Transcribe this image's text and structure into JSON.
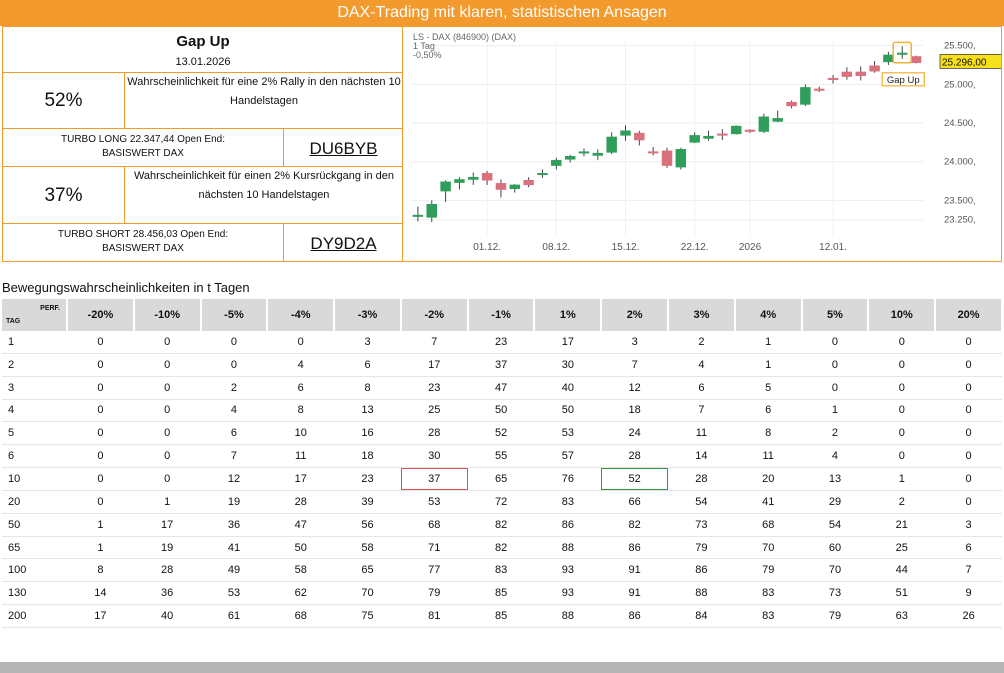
{
  "header": {
    "title": "DAX-Trading mit klaren, statistischen Ansagen"
  },
  "signal": {
    "title": "Gap Up",
    "date": "13.01.2026",
    "long": {
      "percent": "52%",
      "description": "Wahrscheinlichkeit für eine 2% Rally in den nächsten 10 Handelstagen",
      "turbo_line1": "TURBO LONG 22.347,44 Open End:",
      "turbo_line2": "BASISWERT DAX",
      "code": "DU6BYB"
    },
    "short": {
      "percent": "37%",
      "description": "Wahrscheinlichkeit für einen 2% Kursrückgang in den nächsten 10 Handelstagen",
      "turbo_line1": "TURBO SHORT 28.456,03 Open End:",
      "turbo_line2": "BASISWERT DAX",
      "code": "DY9D2A"
    }
  },
  "chart_data": {
    "type": "candlestick",
    "header_lines": [
      "LS - DAX (846900) (DAX)",
      "1 Tag",
      "-0,50%"
    ],
    "y_ticks": [
      "23.250,",
      "23.500,",
      "24.000,",
      "24.500,",
      "25.000,",
      "25.500,"
    ],
    "y_tick_values": [
      23250,
      23500,
      24000,
      24500,
      25000,
      25500
    ],
    "ylim": [
      23130,
      25560
    ],
    "x_ticks": [
      {
        "label": "01.12.",
        "index": 5
      },
      {
        "label": "08.12.",
        "index": 10
      },
      {
        "label": "15.12.",
        "index": 15
      },
      {
        "label": "22.12.",
        "index": 20
      },
      {
        "label": "2026",
        "index": 24
      },
      {
        "label": "12.01.",
        "index": 30
      }
    ],
    "price_tag": "25.296,00",
    "annotation": "Gap Up",
    "up_color": "#2f9e5b",
    "down_color": "#d9707c",
    "candles": [
      {
        "o": 23300,
        "h": 23420,
        "l": 23230,
        "c": 23310
      },
      {
        "o": 23280,
        "h": 23500,
        "l": 23220,
        "c": 23450
      },
      {
        "o": 23620,
        "h": 23760,
        "l": 23480,
        "c": 23740
      },
      {
        "o": 23730,
        "h": 23800,
        "l": 23640,
        "c": 23770
      },
      {
        "o": 23770,
        "h": 23860,
        "l": 23700,
        "c": 23800
      },
      {
        "o": 23850,
        "h": 23880,
        "l": 23700,
        "c": 23760
      },
      {
        "o": 23720,
        "h": 23770,
        "l": 23540,
        "c": 23640
      },
      {
        "o": 23650,
        "h": 23710,
        "l": 23600,
        "c": 23700
      },
      {
        "o": 23760,
        "h": 23800,
        "l": 23670,
        "c": 23700
      },
      {
        "o": 23850,
        "h": 23900,
        "l": 23790,
        "c": 23850
      },
      {
        "o": 23950,
        "h": 24050,
        "l": 23900,
        "c": 24020
      },
      {
        "o": 24030,
        "h": 24090,
        "l": 23990,
        "c": 24070
      },
      {
        "o": 24110,
        "h": 24170,
        "l": 24070,
        "c": 24130
      },
      {
        "o": 24080,
        "h": 24160,
        "l": 24020,
        "c": 24110
      },
      {
        "o": 24120,
        "h": 24380,
        "l": 24100,
        "c": 24320
      },
      {
        "o": 24340,
        "h": 24470,
        "l": 24270,
        "c": 24400
      },
      {
        "o": 24370,
        "h": 24400,
        "l": 24210,
        "c": 24280
      },
      {
        "o": 24130,
        "h": 24190,
        "l": 24080,
        "c": 24120
      },
      {
        "o": 24140,
        "h": 24180,
        "l": 23920,
        "c": 23950
      },
      {
        "o": 23930,
        "h": 24180,
        "l": 23900,
        "c": 24160
      },
      {
        "o": 24250,
        "h": 24380,
        "l": 24240,
        "c": 24340
      },
      {
        "o": 24300,
        "h": 24400,
        "l": 24270,
        "c": 24330
      },
      {
        "o": 24360,
        "h": 24420,
        "l": 24280,
        "c": 24350
      },
      {
        "o": 24360,
        "h": 24470,
        "l": 24350,
        "c": 24460
      },
      {
        "o": 24410,
        "h": 24420,
        "l": 24370,
        "c": 24390
      },
      {
        "o": 24390,
        "h": 24620,
        "l": 24370,
        "c": 24580
      },
      {
        "o": 24520,
        "h": 24660,
        "l": 24510,
        "c": 24560
      },
      {
        "o": 24770,
        "h": 24790,
        "l": 24690,
        "c": 24720
      },
      {
        "o": 24740,
        "h": 25000,
        "l": 24720,
        "c": 24960
      },
      {
        "o": 24940,
        "h": 24970,
        "l": 24900,
        "c": 24930
      },
      {
        "o": 25080,
        "h": 25120,
        "l": 25010,
        "c": 25060
      },
      {
        "o": 25160,
        "h": 25220,
        "l": 25060,
        "c": 25100
      },
      {
        "o": 25160,
        "h": 25230,
        "l": 25050,
        "c": 25110
      },
      {
        "o": 25240,
        "h": 25300,
        "l": 25150,
        "c": 25170
      },
      {
        "o": 25290,
        "h": 25420,
        "l": 25250,
        "c": 25380
      },
      {
        "o": 25400,
        "h": 25490,
        "l": 25330,
        "c": 25405
      },
      {
        "o": 25360,
        "h": 25370,
        "l": 25270,
        "c": 25280
      }
    ]
  },
  "table": {
    "title": "Bewegungswahrscheinlichkeiten in t Tagen",
    "corner_perf": "PERF.",
    "corner_tag": "TAG",
    "columns": [
      "-20%",
      "-10%",
      "-5%",
      "-4%",
      "-3%",
      "-2%",
      "-1%",
      "1%",
      "2%",
      "3%",
      "4%",
      "5%",
      "10%",
      "20%"
    ],
    "rows": [
      {
        "tag": "1",
        "values": [
          "0",
          "0",
          "0",
          "0",
          "3",
          "7",
          "23",
          "17",
          "3",
          "2",
          "1",
          "0",
          "0",
          "0"
        ]
      },
      {
        "tag": "2",
        "values": [
          "0",
          "0",
          "0",
          "4",
          "6",
          "17",
          "37",
          "30",
          "7",
          "4",
          "1",
          "0",
          "0",
          "0"
        ]
      },
      {
        "tag": "3",
        "values": [
          "0",
          "0",
          "2",
          "6",
          "8",
          "23",
          "47",
          "40",
          "12",
          "6",
          "5",
          "0",
          "0",
          "0"
        ]
      },
      {
        "tag": "4",
        "values": [
          "0",
          "0",
          "4",
          "8",
          "13",
          "25",
          "50",
          "50",
          "18",
          "7",
          "6",
          "1",
          "0",
          "0"
        ]
      },
      {
        "tag": "5",
        "values": [
          "0",
          "0",
          "6",
          "10",
          "16",
          "28",
          "52",
          "53",
          "24",
          "11",
          "8",
          "2",
          "0",
          "0"
        ]
      },
      {
        "tag": "6",
        "values": [
          "0",
          "0",
          "7",
          "11",
          "18",
          "30",
          "55",
          "57",
          "28",
          "14",
          "11",
          "4",
          "0",
          "0"
        ]
      },
      {
        "tag": "10",
        "values": [
          "0",
          "0",
          "12",
          "17",
          "23",
          "37",
          "65",
          "76",
          "52",
          "28",
          "20",
          "13",
          "1",
          "0"
        ]
      },
      {
        "tag": "20",
        "values": [
          "0",
          "1",
          "19",
          "28",
          "39",
          "53",
          "72",
          "83",
          "66",
          "54",
          "41",
          "29",
          "2",
          "0"
        ]
      },
      {
        "tag": "50",
        "values": [
          "1",
          "17",
          "36",
          "47",
          "56",
          "68",
          "82",
          "86",
          "82",
          "73",
          "68",
          "54",
          "21",
          "3"
        ]
      },
      {
        "tag": "65",
        "values": [
          "1",
          "19",
          "41",
          "50",
          "58",
          "71",
          "82",
          "88",
          "86",
          "79",
          "70",
          "60",
          "25",
          "6"
        ]
      },
      {
        "tag": "100",
        "values": [
          "8",
          "28",
          "49",
          "58",
          "65",
          "77",
          "83",
          "93",
          "91",
          "86",
          "79",
          "70",
          "44",
          "7"
        ]
      },
      {
        "tag": "130",
        "values": [
          "14",
          "36",
          "53",
          "62",
          "70",
          "79",
          "85",
          "93",
          "91",
          "88",
          "83",
          "73",
          "51",
          "9"
        ]
      },
      {
        "tag": "200",
        "values": [
          "17",
          "40",
          "61",
          "68",
          "75",
          "81",
          "85",
          "88",
          "86",
          "84",
          "83",
          "79",
          "63",
          "26"
        ]
      }
    ]
  }
}
